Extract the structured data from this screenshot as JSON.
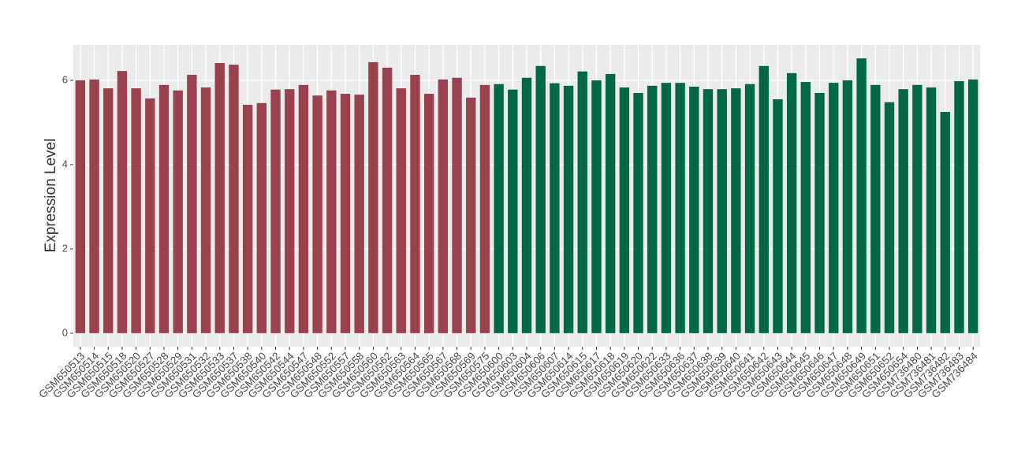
{
  "chart_data": {
    "type": "bar",
    "y_label": "Expression Level",
    "categories": [
      "GSM650513",
      "GSM650514",
      "GSM650515",
      "GSM650518",
      "GSM650520",
      "GSM650527",
      "GSM650528",
      "GSM650529",
      "GSM650531",
      "GSM650532",
      "GSM650533",
      "GSM650537",
      "GSM650538",
      "GSM650540",
      "GSM650542",
      "GSM650544",
      "GSM650547",
      "GSM650548",
      "GSM650552",
      "GSM650557",
      "GSM650558",
      "GSM650560",
      "GSM650562",
      "GSM650563",
      "GSM650564",
      "GSM650565",
      "GSM650567",
      "GSM650568",
      "GSM650569",
      "GSM650575",
      "GSM650600",
      "GSM650603",
      "GSM650604",
      "GSM650606",
      "GSM650607",
      "GSM650614",
      "GSM650615",
      "GSM650617",
      "GSM650618",
      "GSM650619",
      "GSM650620",
      "GSM650622",
      "GSM650633",
      "GSM650636",
      "GSM650637",
      "GSM650638",
      "GSM650639",
      "GSM650640",
      "GSM650641",
      "GSM650642",
      "GSM650643",
      "GSM650644",
      "GSM650645",
      "GSM650646",
      "GSM650647",
      "GSM650648",
      "GSM650649",
      "GSM650651",
      "GSM650652",
      "GSM650654",
      "GSM736480",
      "GSM736481",
      "GSM736482",
      "GSM736483",
      "GSM736484"
    ],
    "values": [
      6.0,
      6.02,
      5.81,
      6.22,
      5.81,
      5.57,
      5.89,
      5.76,
      6.13,
      5.83,
      6.41,
      6.37,
      5.42,
      5.46,
      5.78,
      5.79,
      5.89,
      5.64,
      5.76,
      5.68,
      5.66,
      6.43,
      6.3,
      5.81,
      6.13,
      5.68,
      6.02,
      6.06,
      5.59,
      5.89,
      5.91,
      5.78,
      6.06,
      6.34,
      5.93,
      5.87,
      6.21,
      6.0,
      6.15,
      5.83,
      5.7,
      5.87,
      5.94,
      5.94,
      5.85,
      5.79,
      5.79,
      5.81,
      5.91,
      6.34,
      5.55,
      6.17,
      5.96,
      5.7,
      5.94,
      6.0,
      6.52,
      5.89,
      5.48,
      5.79,
      5.89,
      5.83,
      5.25,
      5.98,
      6.02
    ],
    "colors": [
      "#99414f",
      "#99414f",
      "#99414f",
      "#99414f",
      "#99414f",
      "#99414f",
      "#99414f",
      "#99414f",
      "#99414f",
      "#99414f",
      "#99414f",
      "#99414f",
      "#99414f",
      "#99414f",
      "#99414f",
      "#99414f",
      "#99414f",
      "#99414f",
      "#99414f",
      "#99414f",
      "#99414f",
      "#99414f",
      "#99414f",
      "#99414f",
      "#99414f",
      "#99414f",
      "#99414f",
      "#99414f",
      "#99414f",
      "#99414f",
      "#006847",
      "#006847",
      "#006847",
      "#006847",
      "#006847",
      "#006847",
      "#006847",
      "#006847",
      "#006847",
      "#006847",
      "#006847",
      "#006847",
      "#006847",
      "#006847",
      "#006847",
      "#006847",
      "#006847",
      "#006847",
      "#006847",
      "#006847",
      "#006847",
      "#006847",
      "#006847",
      "#006847",
      "#006847",
      "#006847",
      "#006847",
      "#006847",
      "#006847",
      "#006847",
      "#006847",
      "#006847",
      "#006847",
      "#006847",
      "#006847"
    ],
    "ylim": [
      -0.32,
      6.84
    ],
    "yticks": [
      0,
      2,
      4,
      6
    ],
    "grid": true
  }
}
